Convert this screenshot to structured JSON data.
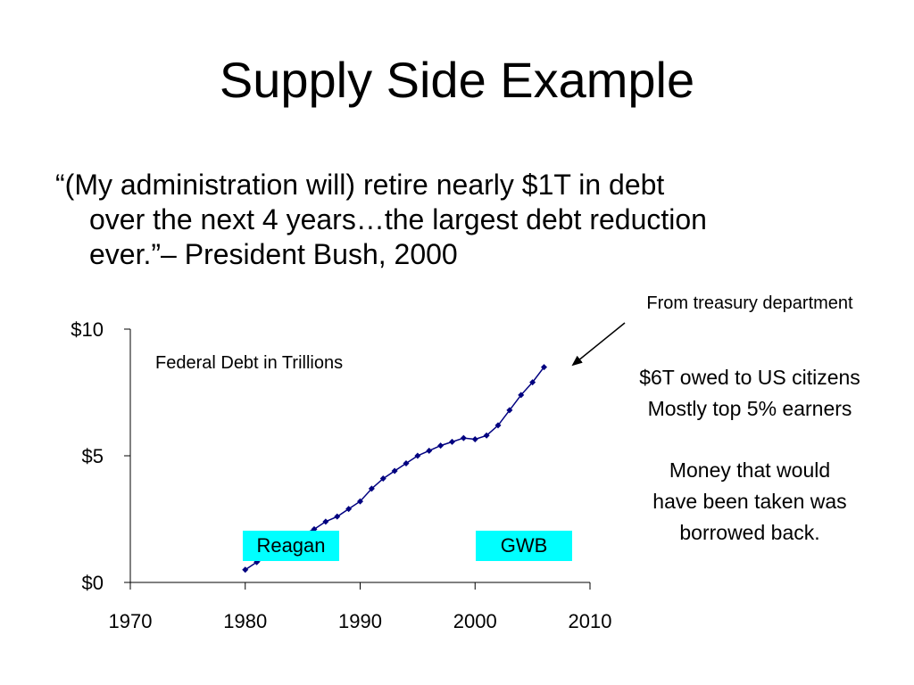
{
  "slide": {
    "title": "Supply Side Example",
    "quote_lines": [
      "“(My administration will) retire nearly $1T in debt",
      "over the next 4 years…the largest debt reduction",
      "ever.”– President Bush, 2000"
    ]
  },
  "annotations": {
    "source": "From treasury department",
    "citizens_line1": "$6T owed to US citizens",
    "citizens_line2": "Mostly top 5% earners",
    "money_line1": "Money that would",
    "money_line2": "have been taken was",
    "money_line3": "borrowed back."
  },
  "chart_data": {
    "type": "line",
    "title": "Federal Debt in Trillions",
    "xlabel": "",
    "ylabel": "",
    "xlim": [
      1970,
      2010
    ],
    "ylim": [
      0,
      10
    ],
    "x_ticks": [
      1970,
      1980,
      1990,
      2000,
      2010
    ],
    "x_tick_labels": [
      "1970",
      "1980",
      "1990",
      "2000",
      "2010"
    ],
    "y_ticks": [
      0,
      5,
      10
    ],
    "y_tick_labels": [
      "$0",
      "$5",
      "$10"
    ],
    "grid": false,
    "line_color": "#000080",
    "series": [
      {
        "x": [
          1980,
          1981,
          1982,
          1983,
          1984,
          1985,
          1986,
          1987,
          1988,
          1989,
          1990,
          1991,
          1992,
          1993,
          1994,
          1995,
          1996,
          1997,
          1998,
          1999,
          2000,
          2001,
          2002,
          2003,
          2004,
          2005,
          2006
        ],
        "values": [
          0.5,
          0.8,
          1.0,
          1.3,
          1.6,
          1.9,
          2.1,
          2.4,
          2.6,
          2.9,
          3.2,
          3.7,
          4.1,
          4.4,
          4.7,
          5.0,
          5.2,
          5.4,
          5.55,
          5.7,
          5.65,
          5.8,
          6.2,
          6.8,
          7.4,
          7.9,
          8.5
        ]
      }
    ],
    "era_labels": [
      {
        "text": "Reagan",
        "color": "#00ffff"
      },
      {
        "text": "GWB",
        "color": "#00ffff"
      }
    ]
  }
}
